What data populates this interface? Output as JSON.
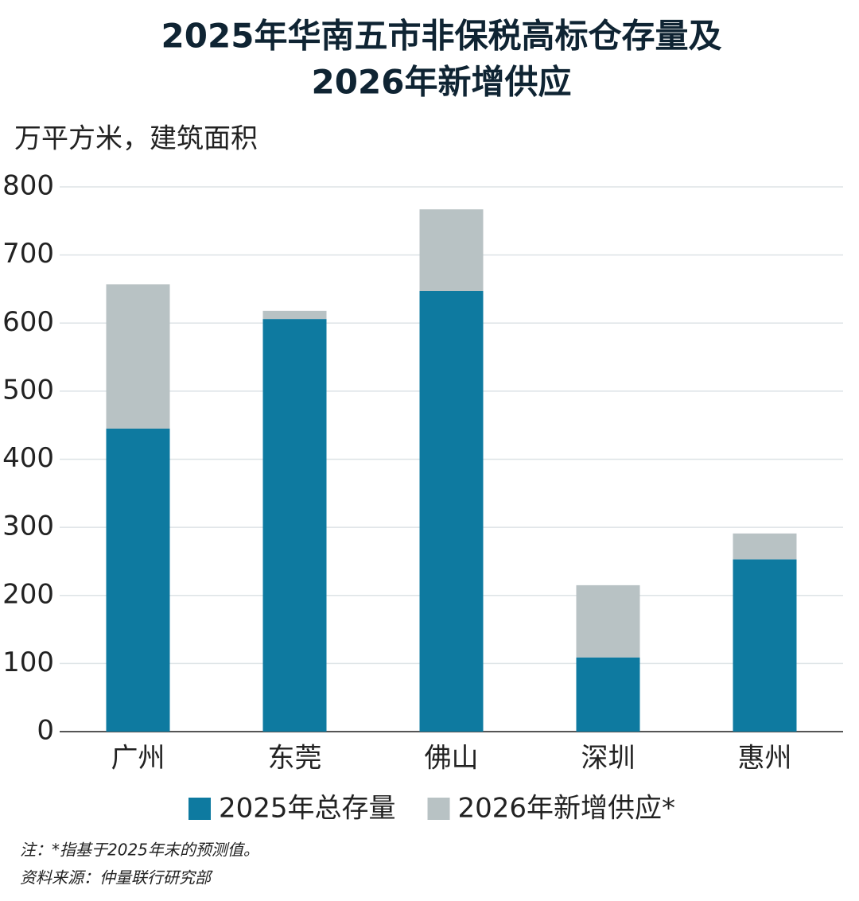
{
  "chart_data": {
    "type": "stacked-bar",
    "title_lines": [
      "2025年华南五市非保税高标仓存量及",
      "2026年新增供应"
    ],
    "y_label": "万平方米，建筑面积",
    "categories": [
      "广州",
      "东莞",
      "佛山",
      "深圳",
      "惠州"
    ],
    "series": [
      {
        "name": "2025年总存量",
        "color": "#0e7aa0",
        "values": [
          445,
          606,
          647,
          109,
          253
        ]
      },
      {
        "name": "2026年新增供应*",
        "color": "#b8c2c4",
        "values": [
          212,
          12,
          120,
          106,
          38
        ]
      }
    ],
    "ylim": [
      0,
      800
    ],
    "yticks": [
      0,
      100,
      200,
      300,
      400,
      500,
      600,
      700,
      800
    ],
    "grid": true,
    "notes": [
      "注：*指基于2025年末的预测值。",
      "资料来源：仲量联行研究部"
    ]
  }
}
